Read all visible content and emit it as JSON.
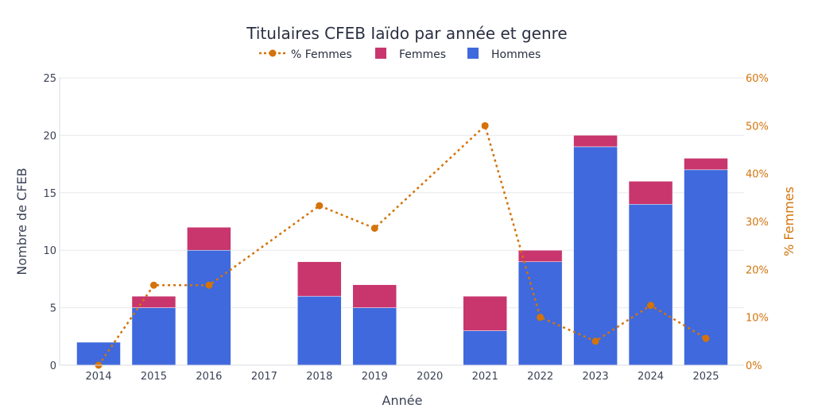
{
  "colors": {
    "hommes": "#3f69dd",
    "femmes": "#c8366d",
    "pct": "#d4730a"
  },
  "chart_data": {
    "type": "bar",
    "stacked": true,
    "title": "Titulaires CFEB Iaïdo par année et genre",
    "xlabel": "Année",
    "ylabel": "Nombre de CFEB",
    "y2label": "% Femmes",
    "categories": [
      "2014",
      "2015",
      "2016",
      "2017",
      "2018",
      "2019",
      "2020",
      "2021",
      "2022",
      "2023",
      "2024",
      "2025"
    ],
    "series": [
      {
        "name": "Hommes",
        "type": "bar",
        "axis": "left",
        "values": [
          2,
          5,
          10,
          0,
          6,
          5,
          0,
          3,
          9,
          19,
          14,
          17
        ]
      },
      {
        "name": "Femmes",
        "type": "bar",
        "axis": "left",
        "values": [
          0,
          1,
          2,
          0,
          3,
          2,
          0,
          3,
          1,
          1,
          2,
          1
        ]
      },
      {
        "name": "% Femmes",
        "type": "line",
        "axis": "right",
        "x": [
          "2014",
          "2015",
          "2016",
          "2018",
          "2019",
          "2021",
          "2022",
          "2023",
          "2024",
          "2025"
        ],
        "values": [
          0,
          16.7,
          16.7,
          33.3,
          28.6,
          50,
          10,
          5,
          12.5,
          5.6
        ]
      }
    ],
    "ylim": [
      0,
      25
    ],
    "yticks": [
      0,
      5,
      10,
      15,
      20,
      25
    ],
    "y2lim": [
      0,
      60
    ],
    "y2ticks": [
      "0%",
      "10%",
      "20%",
      "30%",
      "40%",
      "50%",
      "60%"
    ],
    "legend": {
      "placement": "top-center",
      "entries": [
        "% Femmes",
        "Femmes",
        "Hommes"
      ]
    },
    "grid": true
  }
}
